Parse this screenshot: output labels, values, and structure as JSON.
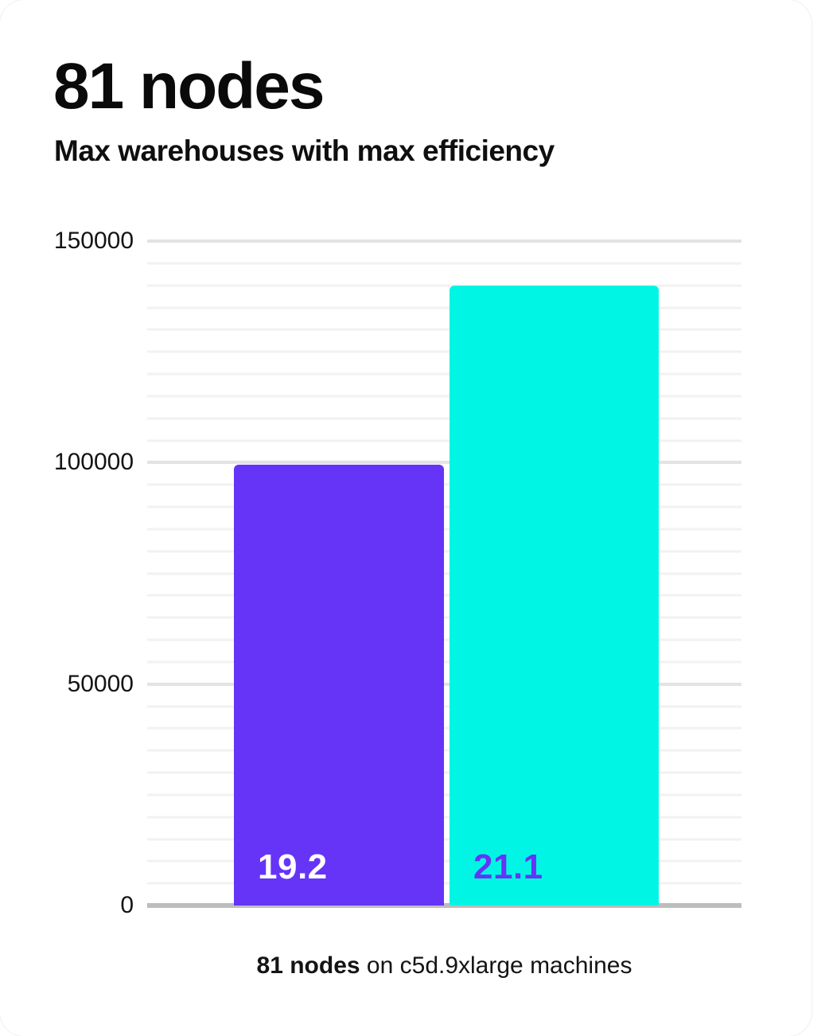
{
  "header": {
    "title": "81 nodes",
    "subtitle": "Max warehouses with max efficiency"
  },
  "chart_data": {
    "type": "bar",
    "title": "81 nodes",
    "subtitle": "Max warehouses with max efficiency",
    "categories": [
      "19.2",
      "21.1"
    ],
    "values": [
      99500,
      139900
    ],
    "bar_value_labels": [
      "19.2",
      "21.1"
    ],
    "xlabel": "",
    "ylabel": "",
    "ylim": [
      0,
      150000
    ],
    "yticks": [
      0,
      50000,
      100000,
      150000
    ],
    "ytick_labels": [
      "0",
      "50000",
      "100000",
      "150000"
    ],
    "minor_gridline_step": 5000,
    "grid": true,
    "legend": false,
    "bar_colors": [
      "#6534f6",
      "#00f5e4"
    ],
    "bar_label_colors": [
      "#ffffff",
      "#6534f6"
    ],
    "grid_minor_color": "#f2f2f2",
    "grid_major_color": "#e3e3e3",
    "baseline_color": "#bdbdbd"
  },
  "caption": {
    "bold": "81 nodes",
    "rest": " on c5d.9xlarge machines"
  }
}
